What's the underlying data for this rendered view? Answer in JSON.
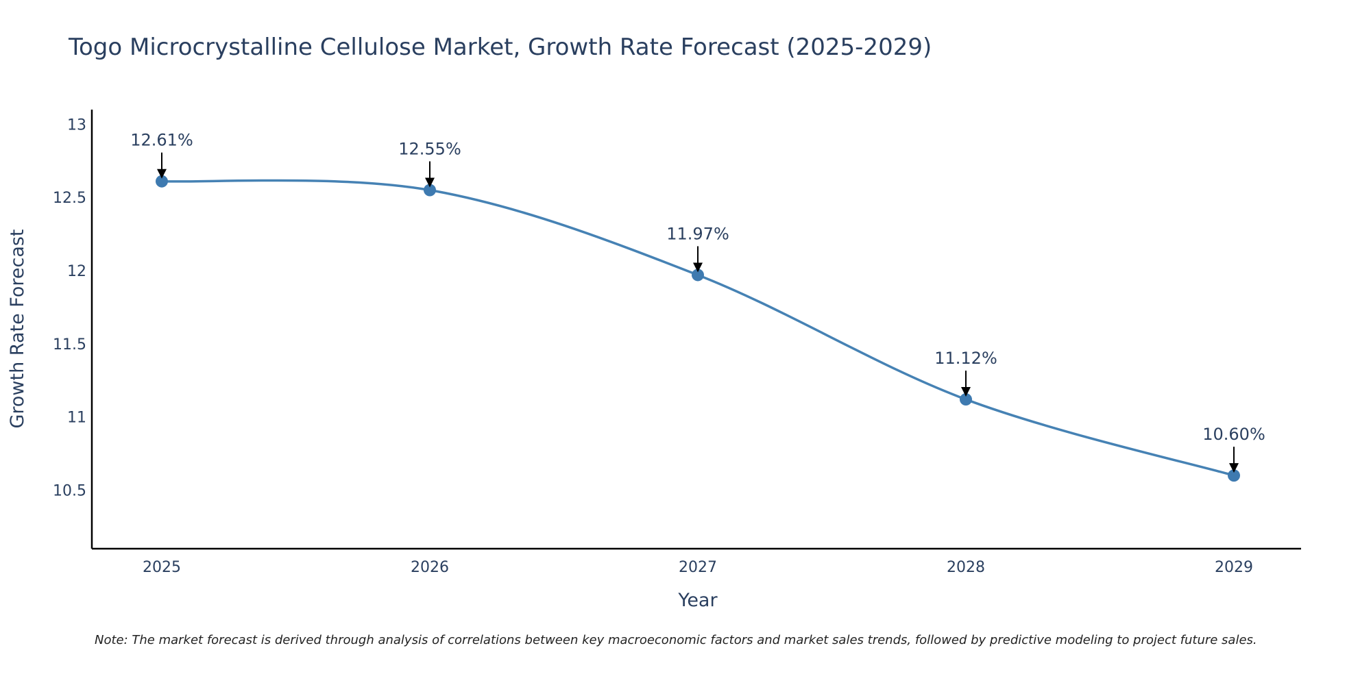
{
  "chart_data": {
    "type": "line",
    "title": "Togo Microcrystalline Cellulose Market, Growth Rate Forecast (2025-2029)",
    "xlabel": "Year",
    "ylabel": "Growth Rate Forecast",
    "x": [
      "2025",
      "2026",
      "2027",
      "2028",
      "2029"
    ],
    "series": [
      {
        "name": "Growth Rate Forecast",
        "values": [
          12.61,
          12.55,
          11.97,
          11.12,
          10.6
        ]
      }
    ],
    "data_labels": [
      "12.61%",
      "12.55%",
      "11.97%",
      "11.12%",
      "10.60%"
    ],
    "yticks": [
      10.5,
      11,
      11.5,
      12,
      12.5,
      13
    ],
    "ytick_labels": [
      "10.5",
      "11",
      "11.5",
      "12",
      "12.5",
      "13"
    ],
    "ylim": [
      10.1,
      13.1
    ],
    "grid": false,
    "line_color": "#4682b4",
    "marker_color": "#3e7ab0",
    "note": "Note: The market forecast is derived through analysis of correlations between key macroeconomic factors and market sales trends, followed by predictive modeling to project future sales."
  }
}
